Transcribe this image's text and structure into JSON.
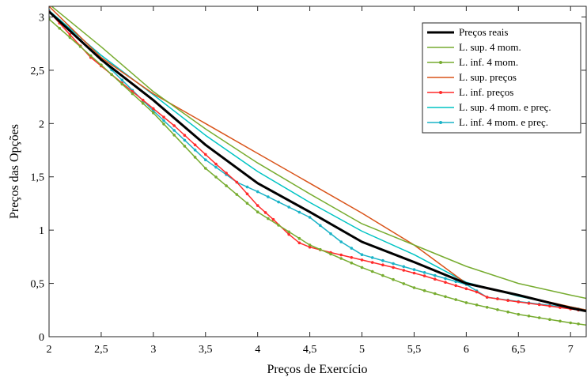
{
  "chart_data": {
    "type": "line",
    "title": "",
    "xlabel": "Preços de Exercício",
    "ylabel": "Preços das Opções",
    "xlim": [
      2,
      7.15
    ],
    "ylim": [
      0,
      3.1
    ],
    "x_ticks": [
      {
        "value": 2,
        "label": "2"
      },
      {
        "value": 2.5,
        "label": "2,5"
      },
      {
        "value": 3,
        "label": "3"
      },
      {
        "value": 3.5,
        "label": "3,5"
      },
      {
        "value": 4,
        "label": "4"
      },
      {
        "value": 4.5,
        "label": "4,5"
      },
      {
        "value": 5,
        "label": "5"
      },
      {
        "value": 5.5,
        "label": "5,5"
      },
      {
        "value": 6,
        "label": "6"
      },
      {
        "value": 6.5,
        "label": "6,5"
      },
      {
        "value": 7,
        "label": "7"
      }
    ],
    "y_ticks": [
      {
        "value": 0,
        "label": "0"
      },
      {
        "value": 0.5,
        "label": "0,5"
      },
      {
        "value": 1,
        "label": "1"
      },
      {
        "value": 1.5,
        "label": "1,5"
      },
      {
        "value": 2,
        "label": "2"
      },
      {
        "value": 2.5,
        "label": "2,5"
      },
      {
        "value": 3,
        "label": "3"
      }
    ],
    "grid": false,
    "legend_position": "top-right",
    "series": [
      {
        "name": "Preços reais",
        "color": "#000000",
        "line_width": 3,
        "marker": false,
        "x": [
          2,
          2.5,
          3,
          3.5,
          4,
          4.5,
          5,
          5.5,
          6,
          6.5,
          7,
          7.15
        ],
        "y": [
          3.05,
          2.6,
          2.22,
          1.8,
          1.44,
          1.17,
          0.89,
          0.7,
          0.5,
          0.39,
          0.27,
          0.24
        ]
      },
      {
        "name": "L. sup. 4 mom.",
        "color": "#77ac30",
        "line_width": 1.5,
        "marker": false,
        "x": [
          2,
          2.5,
          3,
          3.5,
          4,
          4.5,
          5,
          5.5,
          6,
          6.5,
          7,
          7.15
        ],
        "y": [
          3.12,
          2.72,
          2.3,
          1.95,
          1.63,
          1.34,
          1.06,
          0.86,
          0.66,
          0.5,
          0.39,
          0.36
        ]
      },
      {
        "name": "L. inf. 4 mom.",
        "color": "#77ac30",
        "line_width": 1.5,
        "marker": true,
        "x": [
          2,
          2.5,
          3,
          3.5,
          4,
          4.5,
          5,
          5.5,
          6,
          6.5,
          7,
          7.15
        ],
        "y": [
          2.98,
          2.55,
          2.1,
          1.58,
          1.17,
          0.86,
          0.65,
          0.46,
          0.32,
          0.21,
          0.13,
          0.11
        ]
      },
      {
        "name": "L. sup. preços",
        "color": "#d95319",
        "line_width": 1.5,
        "marker": false,
        "x": [
          2,
          2.5,
          3,
          3.5,
          4,
          4.5,
          5,
          5.5,
          6,
          6.2,
          6.5,
          7,
          7.15
        ],
        "y": [
          3.1,
          2.62,
          2.28,
          2.0,
          1.72,
          1.44,
          1.16,
          0.86,
          0.5,
          0.45,
          0.39,
          0.28,
          0.25
        ]
      },
      {
        "name": "L. inf. preços",
        "color": "#ff2a2a",
        "line_width": 1.5,
        "marker": true,
        "x": [
          2,
          2.4,
          2.8,
          3.2,
          3.6,
          3.8,
          4,
          4.15,
          4.3,
          4.4,
          4.5,
          4.7,
          5,
          5.3,
          5.6,
          5.9,
          6.1,
          6.2,
          6.4,
          6.7,
          7,
          7.15
        ],
        "y": [
          3.05,
          2.62,
          2.3,
          1.98,
          1.62,
          1.45,
          1.23,
          1.1,
          0.96,
          0.88,
          0.84,
          0.79,
          0.72,
          0.65,
          0.57,
          0.48,
          0.42,
          0.37,
          0.34,
          0.3,
          0.26,
          0.24
        ]
      },
      {
        "name": "L. sup. 4 mom. e preç.",
        "color": "#00c4c4",
        "line_width": 1.5,
        "marker": false,
        "x": [
          2,
          2.5,
          3,
          3.5,
          4,
          4.5,
          5,
          5.5,
          6,
          6.5,
          7,
          7.15
        ],
        "y": [
          3.06,
          2.64,
          2.27,
          1.89,
          1.55,
          1.26,
          0.99,
          0.77,
          0.51,
          0.38,
          0.28,
          0.25
        ]
      },
      {
        "name": "L. inf. 4 mom. e preç.",
        "color": "#1ab3c7",
        "line_width": 1.5,
        "marker": true,
        "x": [
          2,
          2.5,
          3,
          3.5,
          3.8,
          4,
          4.5,
          4.8,
          5,
          5.5,
          6,
          6.2,
          6.5,
          7,
          7.15
        ],
        "y": [
          3.06,
          2.6,
          2.12,
          1.66,
          1.45,
          1.36,
          1.12,
          0.89,
          0.77,
          0.63,
          0.49,
          0.37,
          0.33,
          0.27,
          0.25
        ]
      }
    ]
  }
}
